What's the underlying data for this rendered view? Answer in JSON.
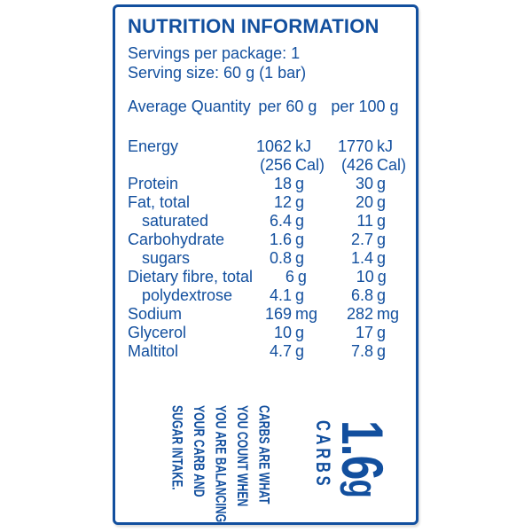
{
  "panel": {
    "title": "NUTRITION INFORMATION",
    "servings_line": "Servings per package: 1",
    "serving_size_line": "Serving size: 60 g (1 bar)",
    "header": {
      "label": "Average Quantity",
      "col1": "per 60 g",
      "col2": "per 100 g"
    },
    "rows": [
      {
        "label": "Energy",
        "indent": false,
        "v1": "1062",
        "u1": "kJ",
        "v2": "1770",
        "u2": "kJ"
      },
      {
        "label": "",
        "indent": false,
        "v1": "(256",
        "u1": "Cal)",
        "v2": "(426",
        "u2": "Cal)"
      },
      {
        "label": "Protein",
        "indent": false,
        "v1": "18",
        "u1": "g",
        "v2": "30",
        "u2": "g"
      },
      {
        "label": "Fat, total",
        "indent": false,
        "v1": "12",
        "u1": "g",
        "v2": "20",
        "u2": "g"
      },
      {
        "label": "saturated",
        "indent": true,
        "v1": "6.4",
        "u1": "g",
        "v2": "11",
        "u2": "g"
      },
      {
        "label": "Carbohydrate",
        "indent": false,
        "v1": "1.6",
        "u1": "g",
        "v2": "2.7",
        "u2": "g"
      },
      {
        "label": "sugars",
        "indent": true,
        "v1": "0.8",
        "u1": "g",
        "v2": "1.4",
        "u2": "g"
      },
      {
        "label": "Dietary fibre, total",
        "indent": false,
        "v1": "6",
        "u1": "g",
        "v2": "10",
        "u2": "g"
      },
      {
        "label": "polydextrose",
        "indent": true,
        "v1": "4.1",
        "u1": "g",
        "v2": "6.8",
        "u2": "g"
      },
      {
        "label": "Sodium",
        "indent": false,
        "v1": "169",
        "u1": "mg",
        "v2": "282",
        "u2": "mg"
      },
      {
        "label": "Glycerol",
        "indent": false,
        "v1": "10",
        "u1": "g",
        "v2": "17",
        "u2": "g"
      },
      {
        "label": "Maltitol",
        "indent": false,
        "v1": "4.7",
        "u1": "g",
        "v2": "7.8",
        "u2": "g"
      }
    ],
    "callout": {
      "message_lines": [
        "CARBS ARE WHAT",
        "YOU COUNT WHEN",
        "YOU ARE BALANCING",
        "YOUR CARB AND",
        "SUGAR INTAKE."
      ],
      "value": "1.6",
      "value_unit": "g",
      "value_label": "CARBS"
    },
    "colors": {
      "blue": "#124F9E"
    }
  }
}
